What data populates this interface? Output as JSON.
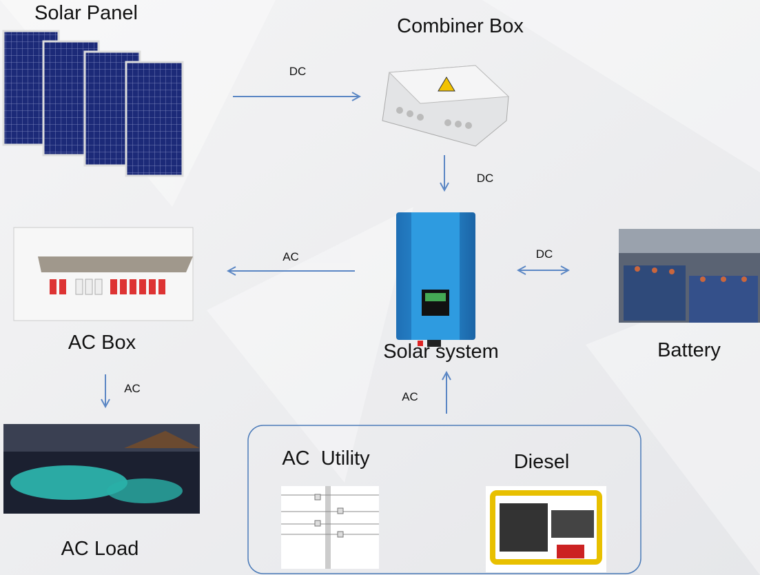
{
  "nodes": [
    {
      "label": "Solar Panel"
    },
    {
      "label": "Combiner Box"
    },
    {
      "label": "Solar system"
    },
    {
      "label": "AC Box"
    },
    {
      "label": "Battery"
    },
    {
      "label": "AC Load"
    },
    {
      "label": "AC  Utility"
    },
    {
      "label": "Diesel"
    }
  ],
  "edges": [
    {
      "label": "DC"
    },
    {
      "label": "DC"
    },
    {
      "label": "AC"
    },
    {
      "label": "DC"
    },
    {
      "label": "AC"
    },
    {
      "label": "AC"
    }
  ]
}
